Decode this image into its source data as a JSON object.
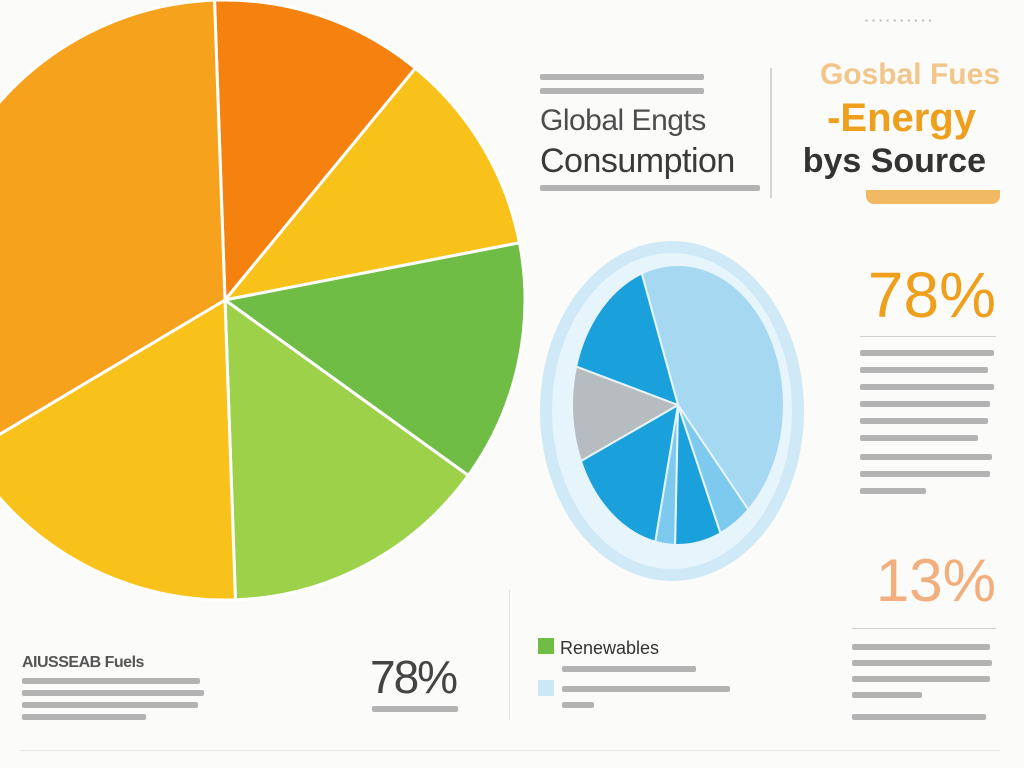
{
  "colors": {
    "orange_dark": "#f5820e",
    "orange": "#f7a21d",
    "yellow": "#f9c21b",
    "green_dark": "#6fbd44",
    "green_light": "#9ed14a",
    "blue_pale": "#a7d8f1",
    "blue_mid": "#7ec9ee",
    "blue_dark": "#1aa0da",
    "grey": "#b7bcc0",
    "ring": "#cfe9f7"
  },
  "titles": {
    "main_line1": "Global Engts",
    "main_line2": "Consumption",
    "right_line1": "Gosbal Fues",
    "right_line2": "-Energy",
    "right_line3": "bys Source"
  },
  "stats": {
    "top": "78%",
    "middle": "13%",
    "bottom": "78%"
  },
  "legend": {
    "renewables": "Renewables",
    "fossil": "AIUSSEAB Fuels"
  },
  "chart_data": [
    {
      "type": "pie",
      "title": "",
      "slices": [
        {
          "value": 11.5,
          "color": "#f5820e"
        },
        {
          "value": 11.0,
          "color": "#f9c21b"
        },
        {
          "value": 13.0,
          "color": "#6fbd44"
        },
        {
          "value": 14.5,
          "color": "#9ed14a"
        },
        {
          "value": 17.0,
          "color": "#f9c21b"
        },
        {
          "value": 33.0,
          "color": "#f7a21d"
        }
      ]
    },
    {
      "type": "pie",
      "title": "",
      "slices": [
        {
          "value": 44,
          "color": "#a7d8f1"
        },
        {
          "value": 5,
          "color": "#7ec9ee"
        },
        {
          "value": 7,
          "color": "#1aa0da"
        },
        {
          "value": 3,
          "color": "#7ec9ee"
        },
        {
          "value": 15,
          "color": "#1aa0da"
        },
        {
          "value": 11,
          "color": "#b7bcc0"
        },
        {
          "value": 15,
          "color": "#1aa0da"
        }
      ]
    }
  ]
}
